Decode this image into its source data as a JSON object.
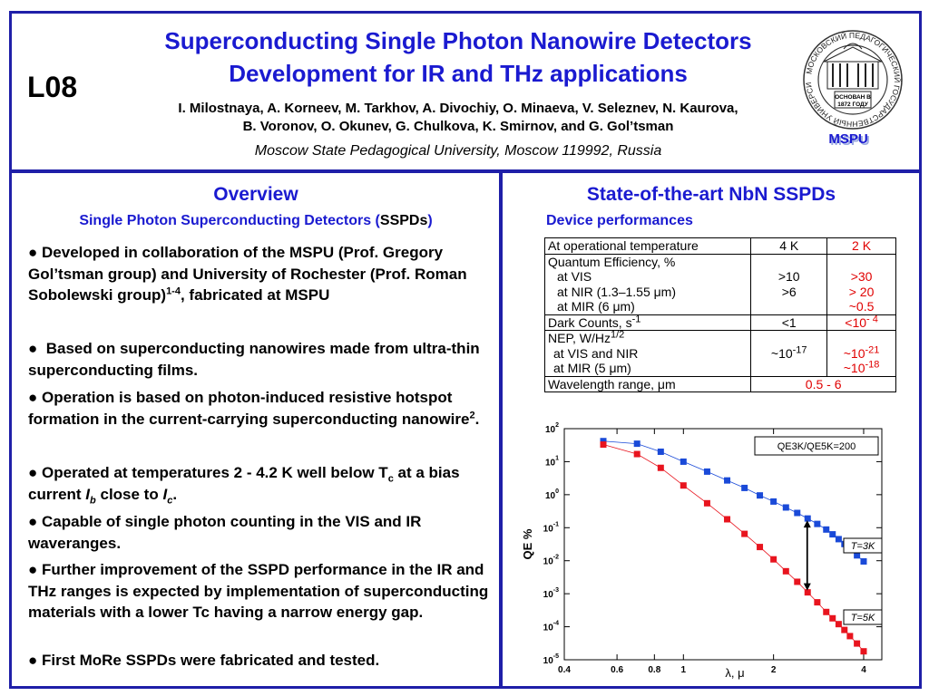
{
  "header": {
    "code": "L08",
    "title_line1": "Superconducting Single Photon Nanowire Detectors",
    "title_line2": "Development for IR and THz applications",
    "authors_line1": "I. Milostnaya, A. Korneev, M. Tarkhov, A. Divochiy, O. Minaeva, V. Seleznev, N. Kaurova,",
    "authors_line2": "B. Voronov, O. Okunev, G. Chulkova, K. Smirnov, and G. Gol’tsman",
    "affiliation": "Moscow State Pedagogical University, Moscow 119992, Russia",
    "logo": {
      "ring_text": "МОСКОВСКИЙ ПЕДАГОГИЧЕСКИЙ ГОСУДАРСТВЕННЫЙ УНИВЕРСИТЕТ",
      "founded_line1": "ОСНОВАН В",
      "founded_line2": "1872 ГОДУ",
      "label": "MSPU"
    }
  },
  "overview": {
    "title": "Overview",
    "subtitle_pre": "Single Photon Superconducting Detectors (",
    "subtitle_abbr": "SSPDs",
    "subtitle_post": ")",
    "bullet": "●",
    "b1_text": "Developed in collaboration of the MSPU (Prof. Gregory Gol’tsman group) and University of Rochester (Prof. Roman Sobolewski group)",
    "b1_sup": "1-4",
    "b1_tail": ", fabricated at MSPU",
    "b2_text": "Based on superconducting nanowires made from ultra-thin superconducting films.",
    "b3_text": "Operation is based on photon-induced resistive hotspot formation in the current-carrying superconducting nanowire",
    "b3_sup": "2",
    "b3_tail": ".",
    "b4_pre": "Operated at temperatures 2 - 4.2 K  well below T",
    "b4_sub1": "c",
    "b4_mid1": " at a bias current ",
    "b4_I1": "I",
    "b4_sub2": "b",
    "b4_mid2": " close to ",
    "b4_I2": "I",
    "b4_sub3": "c",
    "b4_tail": ".",
    "b5_text": "Capable of single photon counting in the VIS and IR waveranges.",
    "b6_text": "Further improvement of the SSPD performance in the IR and THz ranges is expected by implementation of superconducting materials with a lower Tc having a narrow energy gap.",
    "b7_text": "First MoRe SSPDs were fabricated and tested."
  },
  "state": {
    "title": "State-of-the-art NbN SSPDs",
    "subtitle": "Device performances",
    "table": {
      "r1c1": "At operational temperature",
      "r1c2": "4 K",
      "r1c3": "2 K",
      "r2_head": "Quantum Efficiency, %",
      "r2_vis": "at VIS",
      "r2_nir": "at NIR (1.3–1.55 μm)",
      "r2_mir": "at MIR (6 μm)",
      "r2_4k_vis": ">10",
      "r2_4k_nir": ">6",
      "r2_2k_vis": ">30",
      "r2_2k_nir": "> 20",
      "r2_2k_mir": "~0.5",
      "r3_head": "Dark Counts, s",
      "r3_sup": "-1",
      "r3_4k": "<1",
      "r3_2k": "<10",
      "r3_2k_sup": "- 4",
      "r4_head": "NEP, W/Hz",
      "r4_sup": "1/2",
      "r4_vis": "at VIS and NIR",
      "r4_mir": "at MIR (5 μm)",
      "r4_4k": "~10",
      "r4_4k_sup": "-17",
      "r4_2k_a": "~10",
      "r4_2k_a_sup": "-21",
      "r4_2k_b": "~10",
      "r4_2k_b_sup": "-18",
      "r5_head": "Wavelength range, μm",
      "r5_val": "0.5 - 6"
    }
  },
  "chart_data": {
    "type": "scatter",
    "xlabel": "λ, μ",
    "ylabel": "QE %",
    "xscale": "log",
    "yscale": "log",
    "xlim": [
      0.4,
      4.6
    ],
    "ylim": [
      1e-05,
      100
    ],
    "x_ticks": [
      "0.4",
      "0.6",
      "0.8",
      "1",
      "2",
      "4"
    ],
    "x_tick_values": [
      0.4,
      0.6,
      0.8,
      1,
      2,
      4
    ],
    "y_tick_exps": [
      2,
      1,
      0,
      -1,
      -2,
      -3,
      -4,
      -5
    ],
    "y_tick_base": "10",
    "annotation": "QE3K/QE5K=200",
    "series": [
      {
        "name": "T=3K",
        "color": "#1a4ad8",
        "marker": "square",
        "x": [
          0.54,
          0.7,
          0.84,
          1.0,
          1.2,
          1.4,
          1.6,
          1.8,
          2.0,
          2.2,
          2.4,
          2.6,
          2.8,
          3.0,
          3.15,
          3.3,
          3.45,
          3.6,
          3.8,
          4.0
        ],
        "y": [
          42,
          35,
          20,
          10,
          5,
          2.7,
          1.6,
          0.95,
          0.62,
          0.41,
          0.28,
          0.19,
          0.13,
          0.088,
          0.063,
          0.045,
          0.032,
          0.022,
          0.0145,
          0.0095
        ]
      },
      {
        "name": "T=5K",
        "color": "#e8141e",
        "marker": "square",
        "x": [
          0.54,
          0.7,
          0.84,
          1.0,
          1.2,
          1.4,
          1.6,
          1.8,
          2.0,
          2.2,
          2.4,
          2.6,
          2.8,
          3.0,
          3.15,
          3.3,
          3.45,
          3.6,
          3.8,
          4.0
        ],
        "y": [
          33,
          17,
          6.5,
          1.9,
          0.55,
          0.18,
          0.065,
          0.026,
          0.011,
          0.0048,
          0.0023,
          0.0011,
          0.00055,
          0.00028,
          0.00018,
          0.00012,
          8e-05,
          5.2e-05,
          3.1e-05,
          1.8e-05
        ]
      }
    ],
    "labels": {
      "t3": "T=3K",
      "t5": "T=5K"
    }
  }
}
